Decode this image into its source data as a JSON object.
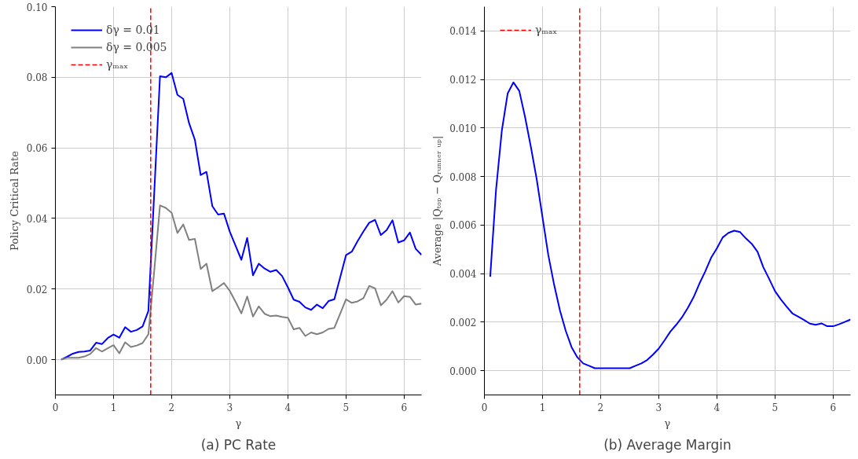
{
  "chart_data": [
    {
      "type": "line",
      "title": "(a) PC Rate",
      "xlabel": "γ",
      "ylabel": "Policy Critical Rate",
      "x": [
        0.1,
        0.2,
        0.3,
        0.4,
        0.5,
        0.6,
        0.7,
        0.8,
        0.9,
        1.0,
        1.1,
        1.2,
        1.3,
        1.4,
        1.5,
        1.6,
        1.7,
        1.8,
        1.9,
        2.0,
        2.1,
        2.2,
        2.3,
        2.4,
        2.5,
        2.6,
        2.7,
        2.8,
        2.9,
        3.0,
        3.1,
        3.2,
        3.3,
        3.4,
        3.5,
        3.6,
        3.7,
        3.8,
        3.9,
        4.0,
        4.1,
        4.2,
        4.3,
        4.4,
        4.5,
        4.6,
        4.7,
        4.8,
        4.9,
        5.0,
        5.1,
        5.2,
        5.3,
        5.4,
        5.5,
        5.6,
        5.7,
        5.8,
        5.9,
        6.0,
        6.1,
        6.2,
        6.3
      ],
      "series": [
        {
          "name": "δγ = 0.01",
          "color": "#0000ff",
          "values": [
            0,
            0.0008,
            0.0017,
            0.0022,
            0.0023,
            0.0026,
            0.0048,
            0.0044,
            0.0061,
            0.0071,
            0.0062,
            0.0092,
            0.0079,
            0.0084,
            0.0094,
            0.0138,
            0.047,
            0.0803,
            0.08,
            0.0812,
            0.075,
            0.0739,
            0.067,
            0.0623,
            0.0523,
            0.0532,
            0.0435,
            0.0411,
            0.0414,
            0.0363,
            0.0323,
            0.0283,
            0.0345,
            0.0239,
            0.0272,
            0.0258,
            0.0249,
            0.0254,
            0.0237,
            0.0205,
            0.017,
            0.0164,
            0.0148,
            0.0141,
            0.0156,
            0.0146,
            0.0166,
            0.0171,
            0.0233,
            0.0296,
            0.0306,
            0.0336,
            0.0363,
            0.0388,
            0.0396,
            0.0353,
            0.0367,
            0.0395,
            0.0332,
            0.0338,
            0.036,
            0.0314,
            0.0297
          ]
        },
        {
          "name": "δγ = 0.005",
          "color": "#808080",
          "values": [
            0,
            0.0005,
            0.0005,
            0.0005,
            0.0009,
            0.0016,
            0.0033,
            0.0023,
            0.0032,
            0.0041,
            0.0018,
            0.0049,
            0.0036,
            0.004,
            0.0047,
            0.0072,
            0.025,
            0.0437,
            0.043,
            0.0416,
            0.0359,
            0.0383,
            0.0339,
            0.0342,
            0.0257,
            0.0272,
            0.0194,
            0.0205,
            0.0217,
            0.0195,
            0.0164,
            0.0131,
            0.0179,
            0.0122,
            0.0151,
            0.013,
            0.0123,
            0.0125,
            0.0121,
            0.0119,
            0.0086,
            0.009,
            0.0067,
            0.0077,
            0.0072,
            0.0077,
            0.0087,
            0.009,
            0.013,
            0.0171,
            0.0161,
            0.0165,
            0.0174,
            0.0209,
            0.0202,
            0.0154,
            0.017,
            0.0194,
            0.0162,
            0.018,
            0.0178,
            0.0156,
            0.0159
          ]
        }
      ],
      "xlim": [
        0,
        6.3
      ],
      "ylim": [
        -0.01,
        0.1
      ],
      "xticks": [
        0,
        1,
        2,
        3,
        4,
        5,
        6
      ],
      "yticks": [
        {
          "value": 0,
          "label": "0.00"
        },
        {
          "value": 0.02,
          "label": "0.02"
        },
        {
          "value": 0.04,
          "label": "0.04"
        },
        {
          "value": 0.06,
          "label": "0.06"
        },
        {
          "value": 0.08,
          "label": "0.08"
        },
        {
          "value": 0.1,
          "label": "0.10"
        }
      ],
      "ref_lines": [
        {
          "axis": "x",
          "value": 1.64,
          "label": "γₘₐₓ",
          "color": "#ff0000",
          "line_style": "dashed"
        }
      ],
      "grid": true,
      "legend": "top left"
    },
    {
      "type": "line",
      "title": "(b) Average Margin",
      "xlabel": "γ",
      "ylabel": "Average |Qₜₒₚ − Qᵣᵤₙₙₑᵣ ᵤₚ|",
      "x": [
        0.1,
        0.2,
        0.3,
        0.4,
        0.5,
        0.6,
        0.7,
        0.8,
        0.9,
        1.0,
        1.1,
        1.2,
        1.3,
        1.4,
        1.5,
        1.6,
        1.7,
        1.8,
        1.9,
        2.0,
        2.1,
        2.2,
        2.3,
        2.4,
        2.5,
        2.6,
        2.7,
        2.8,
        2.9,
        3.0,
        3.1,
        3.2,
        3.3,
        3.4,
        3.5,
        3.6,
        3.7,
        3.8,
        3.9,
        4.0,
        4.1,
        4.2,
        4.3,
        4.4,
        4.5,
        4.6,
        4.7,
        4.8,
        4.9,
        5.0,
        5.1,
        5.2,
        5.3,
        5.4,
        5.5,
        5.6,
        5.7,
        5.8,
        5.9,
        6.0,
        6.1,
        6.2,
        6.3
      ],
      "series": [
        {
          "color": "#0000ff",
          "values": [
            0.00387,
            0.00744,
            0.00989,
            0.01142,
            0.01188,
            0.01153,
            0.01045,
            0.00922,
            0.00789,
            0.00632,
            0.00476,
            0.00354,
            0.00248,
            0.00164,
            0.00097,
            0.00055,
            0.0003,
            0.0002,
            0.0001,
            0.0001,
            0.0001,
            0.0001,
            0.0001,
            0.0001,
            0.0001,
            0.0002,
            0.0003,
            0.00044,
            0.00066,
            0.00091,
            0.00125,
            0.00161,
            0.00189,
            0.0022,
            0.00259,
            0.00303,
            0.00359,
            0.00409,
            0.00465,
            0.00504,
            0.00549,
            0.00568,
            0.00577,
            0.00571,
            0.00545,
            0.00523,
            0.0049,
            0.00426,
            0.00378,
            0.00328,
            0.00294,
            0.00264,
            0.00236,
            0.00223,
            0.00209,
            0.00194,
            0.00189,
            0.00195,
            0.00183,
            0.00183,
            0.00191,
            0.00201,
            0.00211
          ]
        }
      ],
      "xlim": [
        0,
        6.3
      ],
      "ylim": [
        -0.001,
        0.015
      ],
      "xticks": [
        0,
        1,
        2,
        3,
        4,
        5,
        6
      ],
      "yticks": [
        {
          "value": 0,
          "label": "0.000"
        },
        {
          "value": 0.002,
          "label": "0.002"
        },
        {
          "value": 0.004,
          "label": "0.004"
        },
        {
          "value": 0.006,
          "label": "0.006"
        },
        {
          "value": 0.008,
          "label": "0.008"
        },
        {
          "value": 0.01,
          "label": "0.010"
        },
        {
          "value": 0.012,
          "label": "0.012"
        },
        {
          "value": 0.014,
          "label": "0.014"
        }
      ],
      "ref_lines": [
        {
          "axis": "x",
          "value": 1.64,
          "label": "γₘₐₓ",
          "color": "#ff0000",
          "line_style": "dashed"
        }
      ],
      "grid": true,
      "legend": "top left"
    }
  ]
}
